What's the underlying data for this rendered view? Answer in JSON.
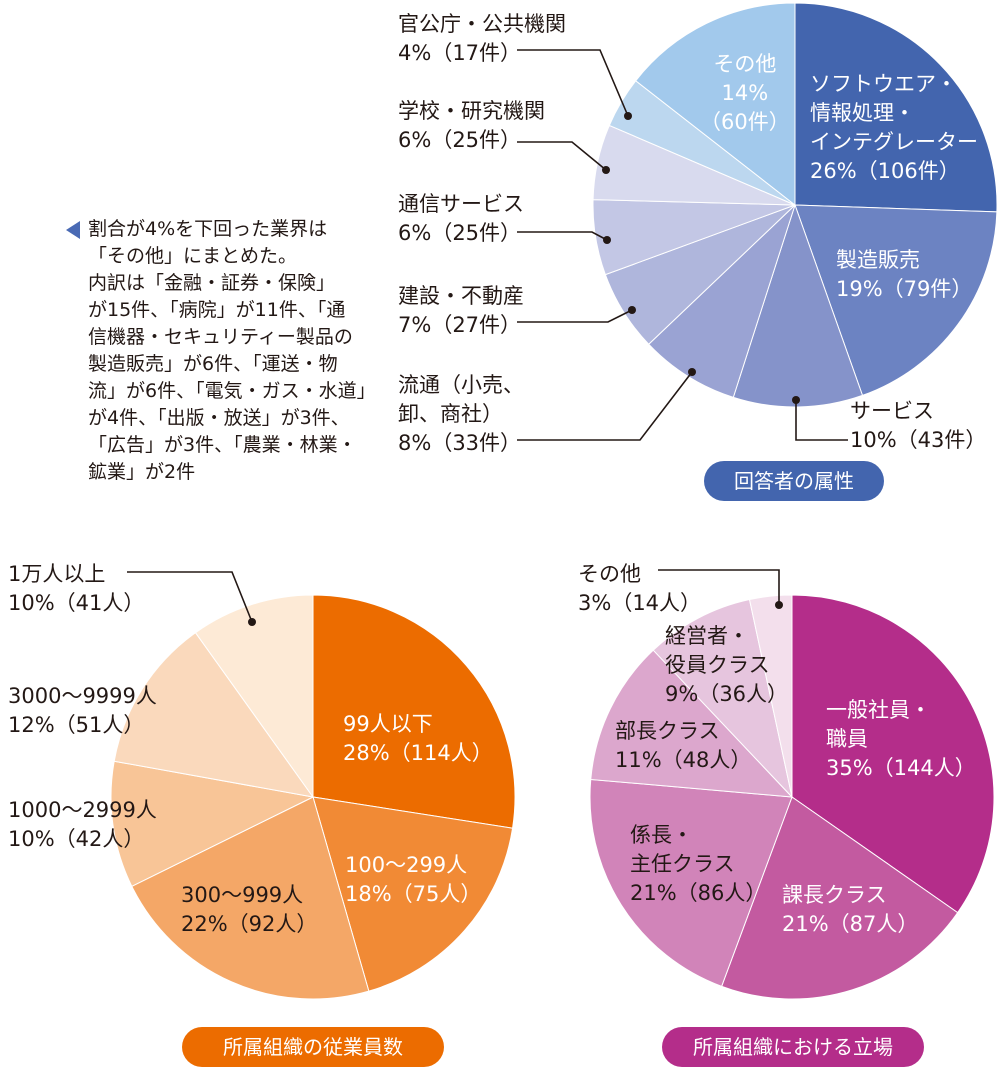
{
  "colors": {
    "blue_badge": "#4365ae",
    "orange_badge": "#ec6c00",
    "magenta_badge": "#b42d8a",
    "leader": "#231815"
  },
  "note": {
    "lines": [
      "割合が4%を下回った業界は",
      "「その他」にまとめた。",
      "内訳は「金融・証券・保険」",
      "が15件、「病院」が11件、「通",
      "信機器・セキュリティー製品の",
      "製造販売」が6件、「運送・物",
      "流」が6件、「電気・ガス・水道」",
      "が4件、「出版・放送」が3件、",
      "「広告」が3件、「農業・林業・",
      "鉱業」が2件"
    ]
  },
  "chart_data": [
    {
      "type": "pie",
      "title": "回答者の属性",
      "slices": [
        {
          "label": "ソフトウエア・情報処理・インテグレーター",
          "label_lines": [
            "ソフトウエア・",
            "情報処理・",
            "インテグレーター",
            "26%（106件）"
          ],
          "percent": 26,
          "count": 106,
          "color": "#4365ae"
        },
        {
          "label": "製造販売",
          "label_lines": [
            "製造販売",
            "19%（79件）"
          ],
          "percent": 19,
          "count": 79,
          "color": "#6c83c2"
        },
        {
          "label": "サービス",
          "label_lines": [
            "サービス",
            "10%（43件）"
          ],
          "percent": 10,
          "count": 43,
          "color": "#8593ca"
        },
        {
          "label": "流通（小売、卸、商社）",
          "label_lines": [
            "流通（小売、",
            "卸、商社）",
            "8%（33件）"
          ],
          "percent": 8,
          "count": 33,
          "color": "#9aa3d3"
        },
        {
          "label": "建設・不動産",
          "label_lines": [
            "建設・不動産",
            "7%（27件）"
          ],
          "percent": 7,
          "count": 27,
          "color": "#afb6dc"
        },
        {
          "label": "通信サービス",
          "label_lines": [
            "通信サービス",
            "6%（25件）"
          ],
          "percent": 6,
          "count": 25,
          "color": "#c3c7e5"
        },
        {
          "label": "学校・研究機関",
          "label_lines": [
            "学校・研究機関",
            "6%（25件）"
          ],
          "percent": 6,
          "count": 25,
          "color": "#d8daee"
        },
        {
          "label": "官公庁・公共機関",
          "label_lines": [
            "官公庁・公共機関",
            "4%（17件）"
          ],
          "percent": 4,
          "count": 17,
          "color": "#bcd7ef"
        },
        {
          "label": "その他",
          "label_lines": [
            "その他",
            "14%",
            "（60件）"
          ],
          "percent": 14,
          "count": 60,
          "color": "#a2c9ec"
        }
      ]
    },
    {
      "type": "pie",
      "title": "所属組織の従業員数",
      "slices": [
        {
          "label": "99人以下",
          "label_lines": [
            "99人以下",
            "28%（114人）"
          ],
          "percent": 28,
          "count": 114,
          "color": "#ec6c00"
        },
        {
          "label": "100～299人",
          "label_lines": [
            "100～299人",
            "18%（75人）"
          ],
          "percent": 18,
          "count": 75,
          "color": "#f18a35"
        },
        {
          "label": "300～999人",
          "label_lines": [
            "300～999人",
            "22%（92人）"
          ],
          "percent": 22,
          "count": 92,
          "color": "#f4a767"
        },
        {
          "label": "1000～2999人",
          "label_lines": [
            "1000～2999人",
            "10%（42人）"
          ],
          "percent": 10,
          "count": 42,
          "color": "#f8c597"
        },
        {
          "label": "3000～9999人",
          "label_lines": [
            "3000～9999人",
            "12%（51人）"
          ],
          "percent": 12,
          "count": 51,
          "color": "#fad9bc"
        },
        {
          "label": "1万人以上",
          "label_lines": [
            "1万人以上",
            "10%（41人）"
          ],
          "percent": 10,
          "count": 41,
          "color": "#fdead6"
        }
      ]
    },
    {
      "type": "pie",
      "title": "所属組織における立場",
      "slices": [
        {
          "label": "一般社員・職員",
          "label_lines": [
            "一般社員・",
            "職員",
            "35%（144人）"
          ],
          "percent": 35,
          "count": 144,
          "color": "#b42d8a"
        },
        {
          "label": "課長クラス",
          "label_lines": [
            "課長クラス",
            "21%（87人）"
          ],
          "percent": 21,
          "count": 87,
          "color": "#c35aa0"
        },
        {
          "label": "係長・主任クラス",
          "label_lines": [
            "係長・",
            "主任クラス",
            "21%（86人）"
          ],
          "percent": 21,
          "count": 86,
          "color": "#d184b9"
        },
        {
          "label": "部長クラス",
          "label_lines": [
            "部長クラス",
            "11%（48人）"
          ],
          "percent": 11,
          "count": 48,
          "color": "#dca7cd"
        },
        {
          "label": "経営者・役員クラス",
          "label_lines": [
            "経営者・",
            "役員クラス",
            "9%（36人）"
          ],
          "percent": 9,
          "count": 36,
          "color": "#e6c5de"
        },
        {
          "label": "その他",
          "label_lines": [
            "その他",
            "3%（14人）"
          ],
          "percent": 3,
          "count": 14,
          "color": "#f3dfec"
        }
      ]
    }
  ]
}
